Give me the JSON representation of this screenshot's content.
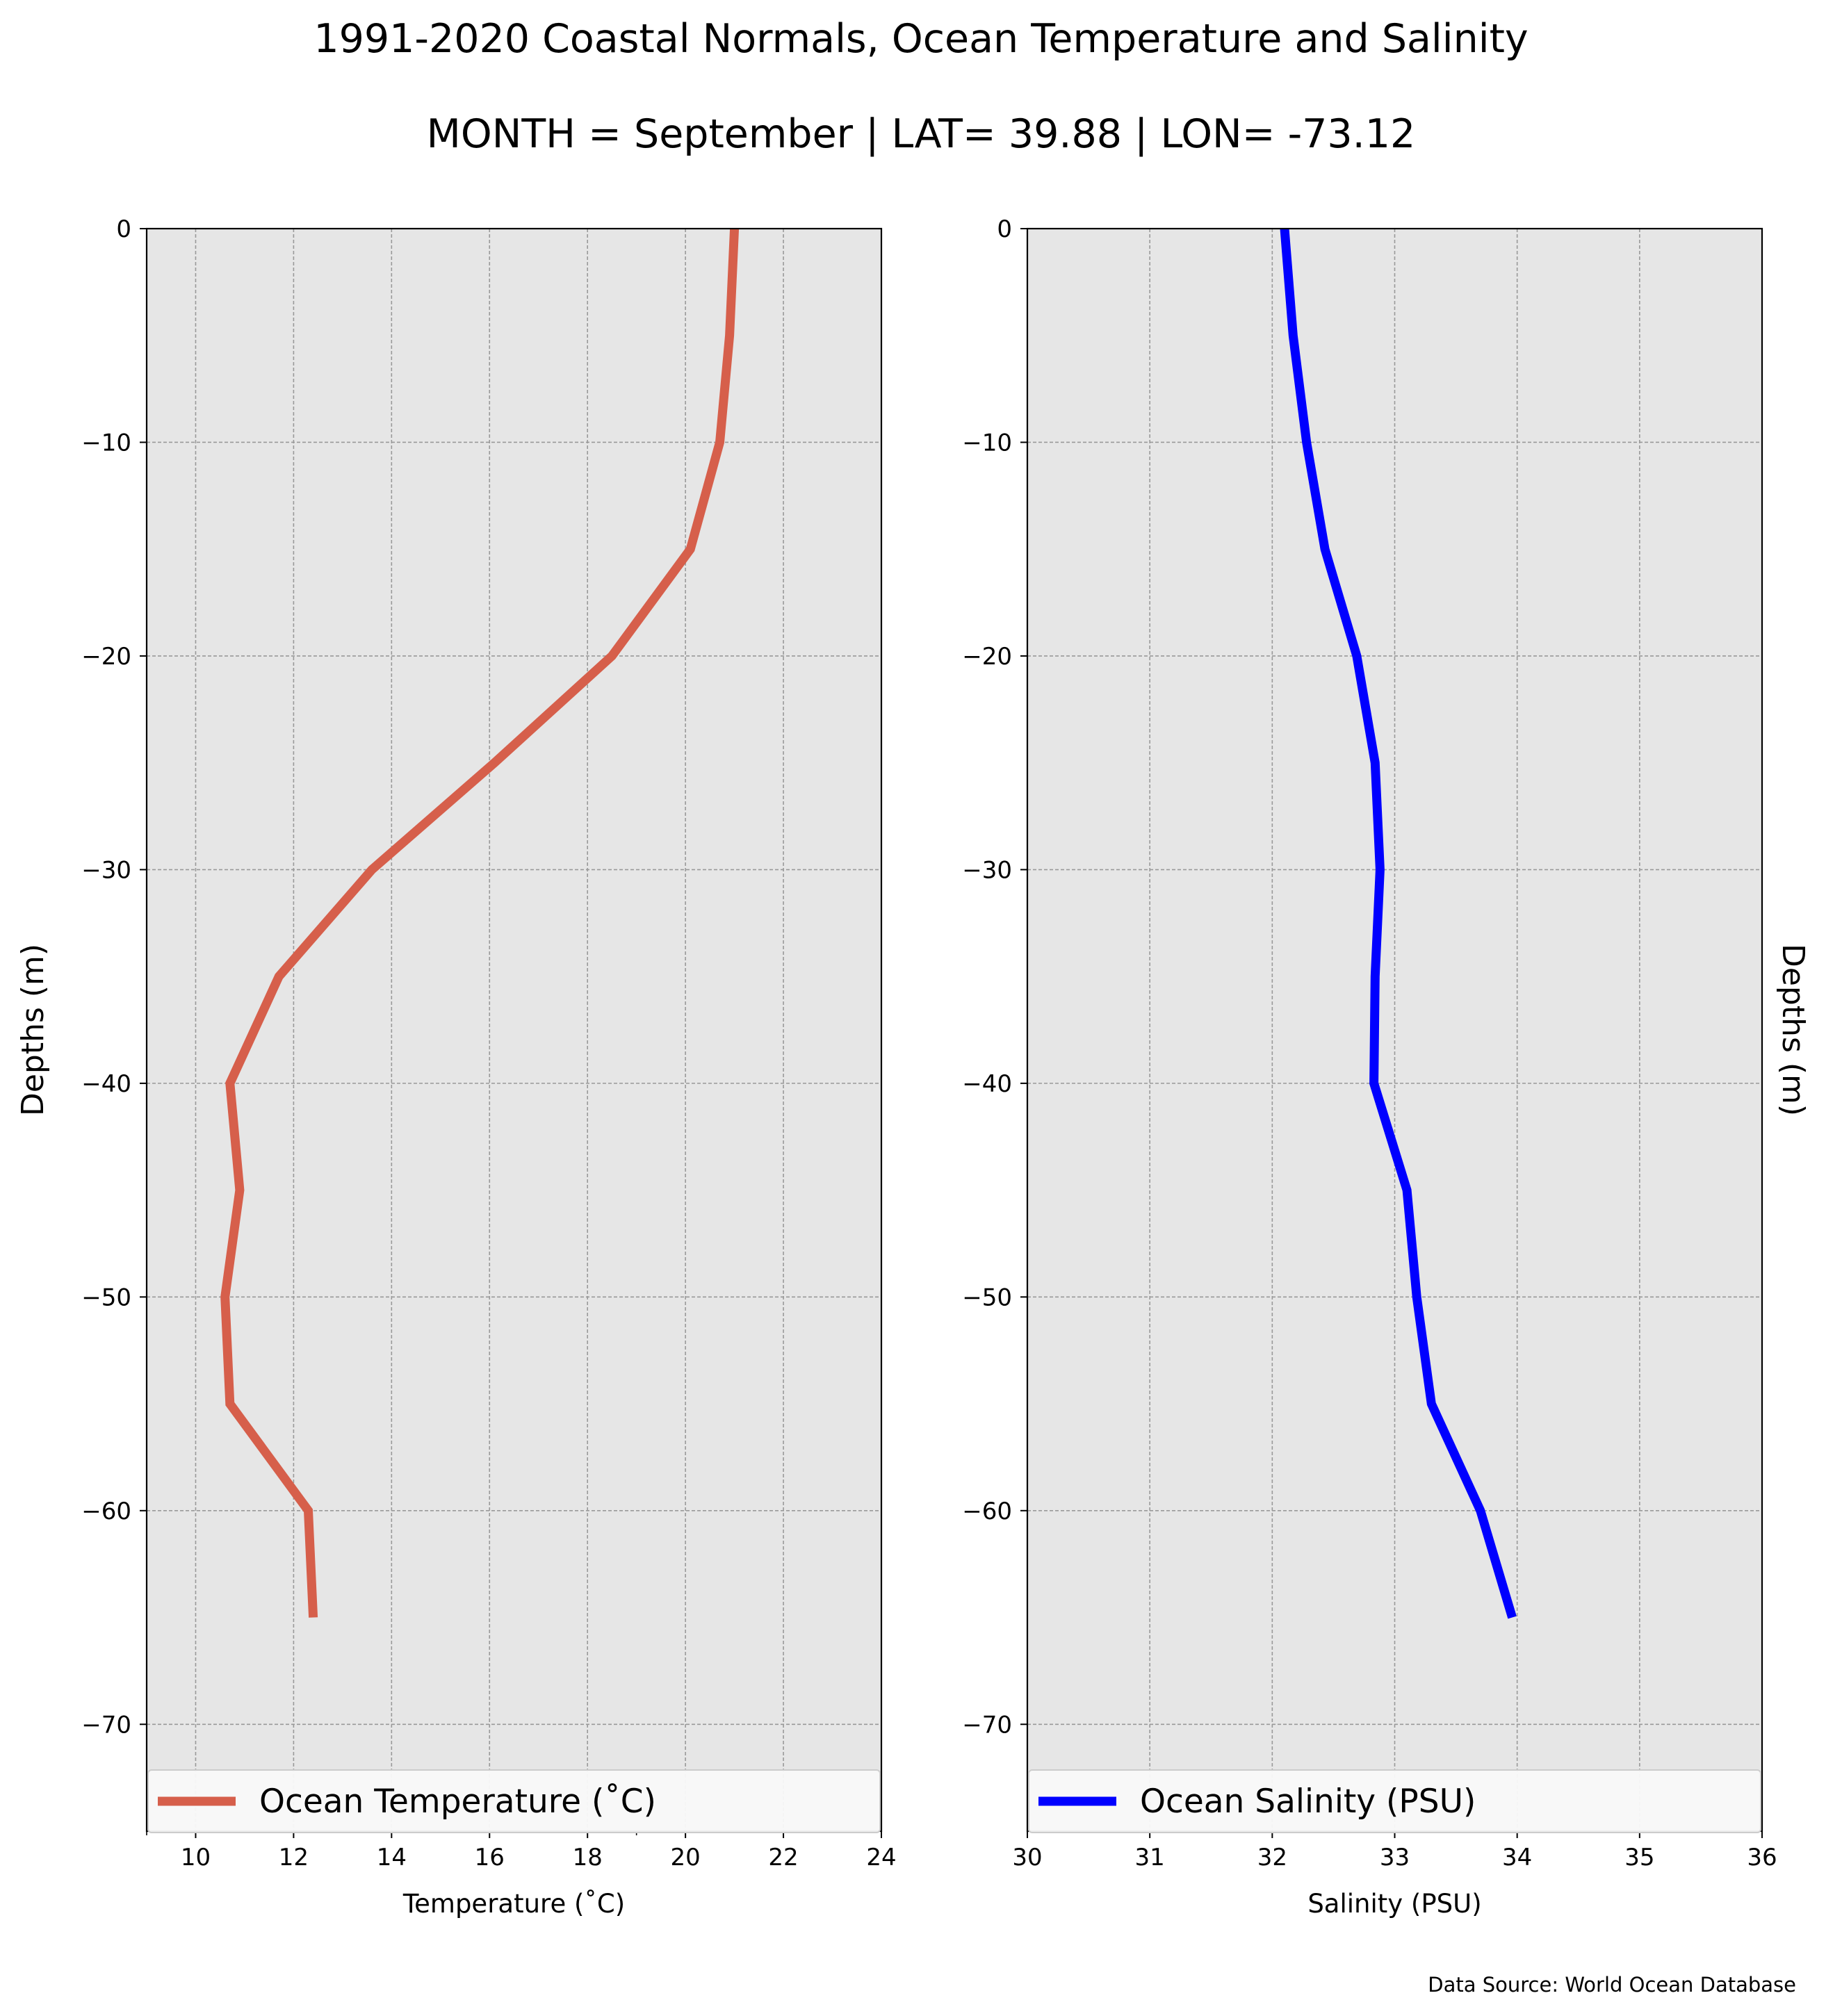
{
  "title": "1991-2020 Coastal Normals, Ocean Temperature and Salinity",
  "subtitle": "MONTH = September | LAT= 39.88 | LON= -73.12",
  "source": "Data Source: World Ocean Database",
  "colors": {
    "background": "#ffffff",
    "plot_bg": "#e6e6e6",
    "grid": "#999999",
    "temperature": "#d65f4b",
    "salinity": "#0000ff"
  },
  "chart_data": [
    {
      "type": "line",
      "orientation": "profile",
      "xlabel": "Temperature ($^\\circ$C)",
      "xlabel_display": "Temperature (˚C)",
      "ylabel": "Depths (m)",
      "xlim": [
        9,
        24
      ],
      "ylim": [
        -75,
        0
      ],
      "xticks": [
        10,
        12,
        14,
        16,
        18,
        20,
        22,
        24
      ],
      "xtick_labels": [
        "10",
        "12",
        "14",
        "16",
        "18",
        "20",
        "22",
        "24"
      ],
      "minor_xticks": [
        9,
        19
      ],
      "yticks": [
        0,
        -10,
        -20,
        -30,
        -40,
        -50,
        -60,
        -70
      ],
      "ytick_labels": [
        "0",
        "−10",
        "−20",
        "−30",
        "−40",
        "−50",
        "−60",
        "−70"
      ],
      "grid": true,
      "legend_position": "bottom",
      "ylabel_side": "left",
      "series": [
        {
          "name": "Ocean Temperature ($^\\circ$C)",
          "name_display": "Ocean Temperature (˚C)",
          "color": "#d65f4b",
          "depth": [
            0,
            -5,
            -10,
            -15,
            -20,
            -25,
            -30,
            -35,
            -40,
            -45,
            -50,
            -55,
            -60,
            -65
          ],
          "values": [
            21.0,
            20.9,
            20.7,
            20.1,
            18.5,
            16.1,
            13.6,
            11.7,
            10.7,
            10.9,
            10.6,
            10.7,
            12.3,
            12.4
          ]
        }
      ]
    },
    {
      "type": "line",
      "orientation": "profile",
      "xlabel": "Salinity (PSU)",
      "ylabel": "Depths (m)",
      "xlim": [
        30,
        36
      ],
      "ylim": [
        -75,
        0
      ],
      "xticks": [
        30,
        31,
        32,
        33,
        34,
        35,
        36
      ],
      "xtick_labels": [
        "30",
        "31",
        "32",
        "33",
        "34",
        "35",
        "36"
      ],
      "minor_xticks": [],
      "yticks": [
        0,
        -10,
        -20,
        -30,
        -40,
        -50,
        -60,
        -70
      ],
      "ytick_labels": [
        "0",
        "−10",
        "−20",
        "−30",
        "−40",
        "−50",
        "−60",
        "−70"
      ],
      "grid": true,
      "legend_position": "bottom",
      "ylabel_side": "right",
      "series": [
        {
          "name": "Ocean Salinity (PSU)",
          "color": "#0000ff",
          "depth": [
            0,
            -5,
            -10,
            -15,
            -20,
            -25,
            -30,
            -35,
            -40,
            -45,
            -50,
            -55,
            -60,
            -65
          ],
          "values": [
            32.1,
            32.17,
            32.28,
            32.43,
            32.69,
            32.84,
            32.88,
            32.84,
            32.83,
            33.1,
            33.18,
            33.3,
            33.7,
            33.96
          ]
        }
      ]
    }
  ]
}
